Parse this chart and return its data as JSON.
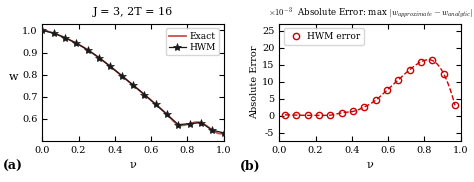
{
  "title_left": "J = 3, 2T = 16",
  "xlabel_left": "ν",
  "ylabel_left": "w",
  "xlabel_right": "ν",
  "ylabel_right": "Absolute Error",
  "label_a": "(a)",
  "label_b": "(b)",
  "exact_color": "#c8504a",
  "hwm_color": "#1a1a1a",
  "error_color": "#cc0000",
  "legend_exact": "Exact",
  "legend_hwm": "HWM",
  "legend_error": "HWM error",
  "x_exact": [
    0.0,
    0.0625,
    0.125,
    0.1875,
    0.25,
    0.3125,
    0.375,
    0.4375,
    0.5,
    0.5625,
    0.625,
    0.6875,
    0.75,
    0.8125,
    0.875,
    0.9375,
    1.0
  ],
  "y_exact": [
    1.0,
    0.9878,
    0.967,
    0.9423,
    0.9122,
    0.8768,
    0.8373,
    0.7955,
    0.753,
    0.7103,
    0.6661,
    0.62,
    0.574,
    0.5785,
    0.583,
    0.549,
    0.537
  ],
  "x_hwm": [
    0.0,
    0.0625,
    0.125,
    0.1875,
    0.25,
    0.3125,
    0.375,
    0.4375,
    0.5,
    0.5625,
    0.625,
    0.6875,
    0.75,
    0.8125,
    0.875,
    0.9375,
    1.0
  ],
  "y_hwm": [
    1.0,
    0.9878,
    0.967,
    0.9423,
    0.9122,
    0.8768,
    0.8373,
    0.7955,
    0.753,
    0.7103,
    0.6661,
    0.62,
    0.574,
    0.5785,
    0.583,
    0.549,
    0.537
  ],
  "x_error": [
    0.03125,
    0.09375,
    0.15625,
    0.21875,
    0.28125,
    0.34375,
    0.40625,
    0.46875,
    0.53125,
    0.59375,
    0.65625,
    0.71875,
    0.78125,
    0.84375,
    0.90625,
    0.96875
  ],
  "y_error": [
    0.0002,
    0.0001,
    5e-05,
    5e-05,
    0.0001,
    0.0008,
    0.0012,
    0.0025,
    0.0045,
    0.0075,
    0.0105,
    0.0135,
    0.0158,
    0.0162,
    0.0123,
    0.003
  ],
  "ylim_left": [
    0.5,
    1.03
  ],
  "xlim_left": [
    0,
    1
  ],
  "xlim_right": [
    0,
    1
  ],
  "ylim_right": [
    -0.0075,
    0.027
  ],
  "yticks_left": [
    0.6,
    0.7,
    0.8,
    0.9,
    1.0
  ],
  "yticks_right_vals": [
    -5,
    0,
    5,
    10,
    15,
    20,
    25
  ],
  "xticks": [
    0,
    0.2,
    0.4,
    0.6,
    0.8,
    1.0
  ],
  "background_color": "#ffffff",
  "grid_color": "#e0e0e0"
}
